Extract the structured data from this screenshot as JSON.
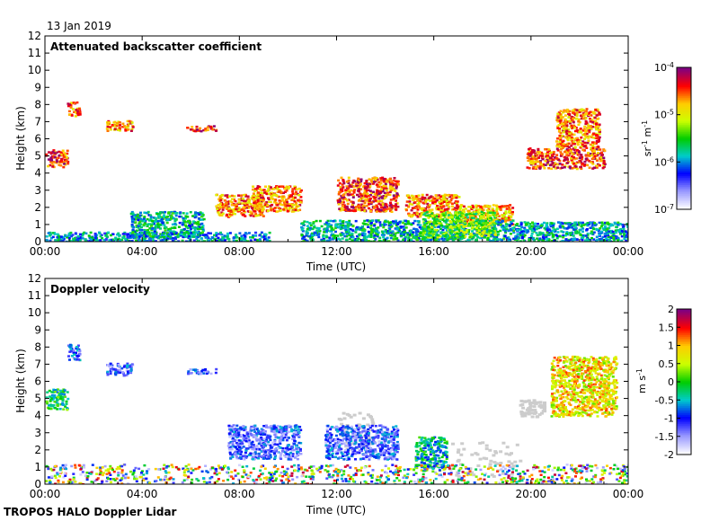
{
  "date": "13 Jan 2019",
  "footer": "TROPOS HALO Doppler Lidar",
  "chart_data": [
    {
      "type": "heatmap",
      "title": "Attenuated backscatter coefficient",
      "xlabel": "Time (UTC)",
      "ylabel": "Height (km)",
      "xticks": [
        "00:00",
        "04:00",
        "08:00",
        "12:00",
        "16:00",
        "20:00",
        "00:00"
      ],
      "xlim_hours": [
        0,
        24
      ],
      "ylim": [
        0,
        12
      ],
      "yticks": [
        0,
        1,
        2,
        3,
        4,
        5,
        6,
        7,
        8,
        9,
        10,
        11,
        12
      ],
      "colorbar": {
        "scale": "log",
        "range": [
          1e-07,
          0.0001
        ],
        "tick_labels": [
          "10-7",
          "10-6",
          "10-5",
          "10-4"
        ],
        "unit_label": "sr-1 m-1",
        "colors": [
          "#ffffff",
          "#9999ff",
          "#0000ff",
          "#00cccc",
          "#00cc00",
          "#ccff00",
          "#ffcc00",
          "#ff0000",
          "#800080"
        ]
      },
      "features": [
        {
          "t0": 0.0,
          "t1": 0.9,
          "h0": 4.4,
          "h1": 5.4,
          "level": 0.85
        },
        {
          "t0": 0.9,
          "t1": 1.4,
          "h0": 7.3,
          "h1": 8.2,
          "level": 0.8
        },
        {
          "t0": 2.5,
          "t1": 3.6,
          "h0": 6.5,
          "h1": 7.1,
          "level": 0.8
        },
        {
          "t0": 5.8,
          "t1": 7.0,
          "h0": 6.5,
          "h1": 6.8,
          "level": 0.85
        },
        {
          "t0": 7.0,
          "t1": 9.0,
          "h0": 1.5,
          "h1": 2.8,
          "level": 0.8
        },
        {
          "t0": 8.5,
          "t1": 10.5,
          "h0": 1.8,
          "h1": 3.3,
          "level": 0.8
        },
        {
          "t0": 12.0,
          "t1": 14.5,
          "h0": 1.8,
          "h1": 3.8,
          "level": 0.85
        },
        {
          "t0": 14.8,
          "t1": 17.0,
          "h0": 1.5,
          "h1": 2.8,
          "level": 0.8
        },
        {
          "t0": 17.0,
          "t1": 19.2,
          "h0": 1.0,
          "h1": 2.2,
          "level": 0.75
        },
        {
          "t0": 19.8,
          "t1": 23.0,
          "h0": 4.3,
          "h1": 5.5,
          "level": 0.85
        },
        {
          "t0": 21.0,
          "t1": 22.8,
          "h0": 5.5,
          "h1": 7.8,
          "level": 0.8
        },
        {
          "t0": 0.0,
          "t1": 9.2,
          "h0": 0.0,
          "h1": 0.6,
          "level": 0.35
        },
        {
          "t0": 3.5,
          "t1": 6.5,
          "h0": 0.3,
          "h1": 1.8,
          "level": 0.4
        },
        {
          "t0": 10.5,
          "t1": 19.3,
          "h0": 0.0,
          "h1": 1.3,
          "level": 0.4
        },
        {
          "t0": 15.5,
          "t1": 18.5,
          "h0": 0.3,
          "h1": 1.8,
          "level": 0.55
        },
        {
          "t0": 19.3,
          "t1": 24.0,
          "h0": 0.0,
          "h1": 1.2,
          "level": 0.38
        }
      ]
    },
    {
      "type": "heatmap",
      "title": "Doppler velocity",
      "xlabel": "Time (UTC)",
      "ylabel": "Height (km)",
      "xticks": [
        "00:00",
        "04:00",
        "08:00",
        "12:00",
        "16:00",
        "20:00",
        "00:00"
      ],
      "xlim_hours": [
        0,
        24
      ],
      "ylim": [
        0,
        12
      ],
      "yticks": [
        0,
        1,
        2,
        3,
        4,
        5,
        6,
        7,
        8,
        9,
        10,
        11,
        12
      ],
      "colorbar": {
        "scale": "linear",
        "range": [
          -2,
          2
        ],
        "tick_labels": [
          "-2",
          "-1.5",
          "-1",
          "-0.5",
          "0",
          "0.5",
          "1",
          "1.5",
          "2"
        ],
        "unit_label": "m s-1",
        "colors": [
          "#ffffff",
          "#9999ff",
          "#0000ff",
          "#00cccc",
          "#00cc00",
          "#ccff00",
          "#ffcc00",
          "#ff0000",
          "#800080"
        ]
      },
      "features": [
        {
          "t0": 0.0,
          "t1": 0.9,
          "h0": 4.4,
          "h1": 5.6,
          "level": 0.45
        },
        {
          "t0": 0.9,
          "t1": 1.4,
          "h0": 7.3,
          "h1": 8.2,
          "level": 0.25
        },
        {
          "t0": 2.5,
          "t1": 3.6,
          "h0": 6.4,
          "h1": 7.1,
          "level": 0.22
        },
        {
          "t0": 5.8,
          "t1": 7.0,
          "h0": 6.5,
          "h1": 6.8,
          "level": 0.22
        },
        {
          "t0": 7.5,
          "t1": 10.5,
          "h0": 1.5,
          "h1": 3.5,
          "level": 0.22
        },
        {
          "t0": 11.5,
          "t1": 14.5,
          "h0": 1.5,
          "h1": 3.5,
          "level": 0.22
        },
        {
          "t0": 15.2,
          "t1": 16.5,
          "h0": 1.0,
          "h1": 2.8,
          "level": 0.4
        },
        {
          "t0": 20.8,
          "t1": 23.5,
          "h0": 4.0,
          "h1": 7.5,
          "level": 0.7
        },
        {
          "t0": 0.0,
          "t1": 24.0,
          "h0": 0.0,
          "h1": 1.2,
          "level": 0.5
        }
      ],
      "no_data_regions": [
        {
          "t0": 12.0,
          "t1": 13.5,
          "h0": 2.0,
          "h1": 4.3
        },
        {
          "t0": 16.5,
          "t1": 19.5,
          "h0": 0.5,
          "h1": 2.5
        },
        {
          "t0": 19.5,
          "t1": 20.5,
          "h0": 4.0,
          "h1": 5.0
        }
      ]
    }
  ]
}
